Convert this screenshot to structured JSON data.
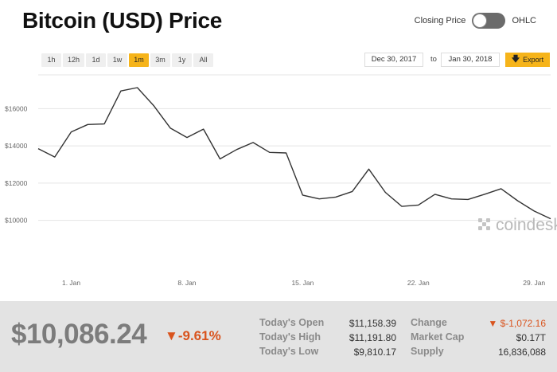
{
  "header": {
    "title": "Bitcoin (USD) Price",
    "toggle_left": "Closing Price",
    "toggle_right": "OHLC"
  },
  "range_buttons": [
    {
      "label": "1h",
      "active": false
    },
    {
      "label": "12h",
      "active": false
    },
    {
      "label": "1d",
      "active": false
    },
    {
      "label": "1w",
      "active": false
    },
    {
      "label": "1m",
      "active": true
    },
    {
      "label": "3m",
      "active": false
    },
    {
      "label": "1y",
      "active": false
    },
    {
      "label": "All",
      "active": false
    }
  ],
  "date_range": {
    "from": "Dec 30, 2017",
    "to_label": "to",
    "to": "Jan 30, 2018"
  },
  "export": {
    "label": "Export",
    "icon": "download-arrow-icon"
  },
  "colors": {
    "accent": "#f6b41a",
    "negative": "#d9541e",
    "line": "#333333"
  },
  "chart_data": {
    "type": "line",
    "title": "",
    "xlabel": "",
    "ylabel": "",
    "x_tick_labels": [
      "1. Jan",
      "8. Jan",
      "15. Jan",
      "22. Jan",
      "29. Jan"
    ],
    "y_tick_labels": [
      "$10000",
      "$12000",
      "$14000",
      "$16000"
    ],
    "y_ticks": [
      10000,
      12000,
      14000,
      16000
    ],
    "ylim": [
      7200,
      17900
    ],
    "xlim": [
      "2017-12-30",
      "2018-01-30"
    ],
    "grid": true,
    "watermark": "coindesk",
    "series": [
      {
        "points": [
          [
            "2017-12-30",
            13850
          ],
          [
            "2017-12-31",
            13400
          ],
          [
            "2018-01-01",
            14750
          ],
          [
            "2018-01-02",
            15150
          ],
          [
            "2018-01-03",
            15180
          ],
          [
            "2018-01-04",
            16950
          ],
          [
            "2018-01-05",
            17130
          ],
          [
            "2018-01-06",
            16150
          ],
          [
            "2018-01-07",
            14950
          ],
          [
            "2018-01-08",
            14450
          ],
          [
            "2018-01-09",
            14900
          ],
          [
            "2018-01-10",
            13300
          ],
          [
            "2018-01-11",
            13800
          ],
          [
            "2018-01-12",
            14180
          ],
          [
            "2018-01-13",
            13650
          ],
          [
            "2018-01-14",
            13620
          ],
          [
            "2018-01-15",
            11350
          ],
          [
            "2018-01-16",
            11150
          ],
          [
            "2018-01-17",
            11250
          ],
          [
            "2018-01-18",
            11550
          ],
          [
            "2018-01-19",
            12750
          ],
          [
            "2018-01-20",
            11500
          ],
          [
            "2018-01-21",
            10750
          ],
          [
            "2018-01-22",
            10820
          ],
          [
            "2018-01-23",
            11400
          ],
          [
            "2018-01-24",
            11150
          ],
          [
            "2018-01-25",
            11120
          ],
          [
            "2018-01-26",
            11400
          ],
          [
            "2018-01-27",
            11700
          ],
          [
            "2018-01-28",
            11050
          ],
          [
            "2018-01-29",
            10500
          ],
          [
            "2018-01-30",
            10086
          ]
        ]
      }
    ]
  },
  "summary": {
    "price": "$10,086.24",
    "change_pct": "-9.61%",
    "stats_left": [
      {
        "label": "Today's Open",
        "value": "$11,158.39"
      },
      {
        "label": "Today's High",
        "value": "$11,191.80"
      },
      {
        "label": "Today's Low",
        "value": "$9,810.17"
      }
    ],
    "stats_right": [
      {
        "label": "Change",
        "value": "$-1,072.16",
        "negative": true
      },
      {
        "label": "Market Cap",
        "value": "$0.17T",
        "negative": false
      },
      {
        "label": "Supply",
        "value": "16,836,088",
        "negative": false
      }
    ]
  }
}
